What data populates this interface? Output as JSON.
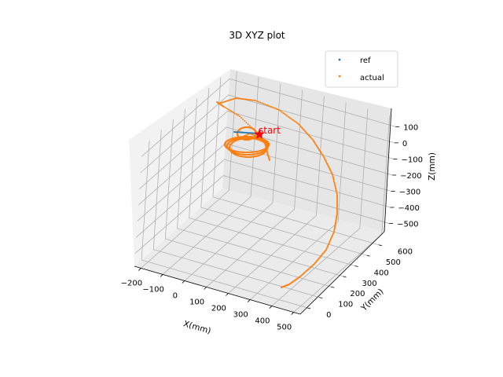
{
  "chart_data": {
    "type": "scatter",
    "projection": "3d",
    "title": "3D XYZ plot",
    "xlabel": "X(mm)",
    "ylabel": "Y(mm)",
    "zlabel": "Z(mm)",
    "xticks": [
      -200,
      -100,
      0,
      100,
      200,
      300,
      400,
      500
    ],
    "yticks": [
      0,
      100,
      200,
      300,
      400,
      500,
      600
    ],
    "zticks": [
      100,
      0,
      -100,
      -200,
      -300,
      -400,
      -500
    ],
    "xlim": [
      -230,
      530
    ],
    "ylim": [
      -60,
      680
    ],
    "zlim": [
      -580,
      160
    ],
    "grid": true,
    "legend_position": "top-right",
    "series": [
      {
        "name": "ref",
        "color": "#1f77b4",
        "marker": "dot"
      },
      {
        "name": "actual",
        "color": "#ff7f0e",
        "marker": "dot"
      }
    ],
    "annotation": {
      "text": "start",
      "color": "#ff0000",
      "marker": "star"
    }
  }
}
